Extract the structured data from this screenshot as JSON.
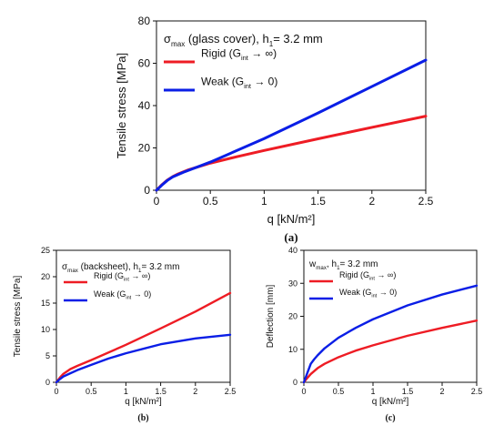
{
  "colors": {
    "rigid": "#ee1c24",
    "weak": "#0a1ee6",
    "axis": "#111111"
  },
  "chart_data": [
    {
      "panel_label": "(a)",
      "type": "line",
      "title": {
        "main": "σ",
        "sub": "max",
        "rest": " (glass cover), h",
        "hsub": "1",
        "tail": "= 3.2 mm"
      },
      "xlabel": "q  [kN/m²]",
      "ylabel": "Tensile stress  [MPa]",
      "xlim": [
        0,
        2.5
      ],
      "ylim": [
        0,
        80
      ],
      "xticks": [
        "0",
        "0.5",
        "1",
        "1.5",
        "2",
        "2.5"
      ],
      "xtick_values": [
        0,
        0.5,
        1,
        1.5,
        2,
        2.5
      ],
      "yticks": [
        "0",
        "20",
        "40",
        "60",
        "80"
      ],
      "ytick_values": [
        0,
        20,
        40,
        60,
        80
      ],
      "grid": false,
      "legend_position": "top-left",
      "series": [
        {
          "name": "Rigid (G",
          "name_sub": "int",
          "name_tail": " → ∞)",
          "color_key": "rigid",
          "x": [
            0,
            0.05,
            0.1,
            0.15,
            0.2,
            0.3,
            0.5,
            0.75,
            1,
            1.5,
            2,
            2.5
          ],
          "y": [
            0,
            2.6,
            4.8,
            6.4,
            7.7,
            9.7,
            12.8,
            15.9,
            18.8,
            24.3,
            29.7,
            35
          ]
        },
        {
          "name": "Weak (G",
          "name_sub": "int",
          "name_tail": " → 0)",
          "color_key": "weak",
          "x": [
            0,
            0.05,
            0.1,
            0.15,
            0.25,
            0.5,
            1,
            1.5,
            2,
            2.5
          ],
          "y": [
            0,
            2.4,
            4.6,
            6.3,
            8.5,
            13.3,
            24.4,
            36.5,
            49,
            61.5
          ]
        }
      ]
    },
    {
      "panel_label": "(b)",
      "type": "line",
      "title": {
        "main": "σ",
        "sub": "max",
        "rest": " (backsheet), h",
        "hsub": "1",
        "tail": "= 3.2 mm"
      },
      "xlabel": "q  [kN/m²]",
      "ylabel": "Tensile stress  [MPa]",
      "xlim": [
        0,
        2.5
      ],
      "ylim": [
        0,
        25
      ],
      "xticks": [
        "0",
        "0.5",
        "1",
        "1.5",
        "2",
        "2.5"
      ],
      "xtick_values": [
        0,
        0.5,
        1,
        1.5,
        2,
        2.5
      ],
      "yticks": [
        "0",
        "5",
        "10",
        "15",
        "20",
        "25"
      ],
      "ytick_values": [
        0,
        5,
        10,
        15,
        20,
        25
      ],
      "grid": false,
      "legend_position": "top-left",
      "series": [
        {
          "name": "Rigid (G",
          "name_sub": "int",
          "name_tail": " → ∞)",
          "color_key": "rigid",
          "x": [
            0,
            0.05,
            0.1,
            0.2,
            0.3,
            0.5,
            1,
            1.5,
            2,
            2.5
          ],
          "y": [
            0,
            0.9,
            1.6,
            2.5,
            3.1,
            4.2,
            7.1,
            10.2,
            13.4,
            16.9
          ]
        },
        {
          "name": "Weak (G",
          "name_sub": "int",
          "name_tail": " → 0)",
          "color_key": "weak",
          "x": [
            0,
            0.05,
            0.1,
            0.2,
            0.3,
            0.5,
            0.75,
            1,
            1.5,
            2,
            2.5
          ],
          "y": [
            0,
            0.6,
            1.1,
            1.7,
            2.3,
            3.3,
            4.5,
            5.5,
            7.2,
            8.3,
            9.0
          ]
        }
      ]
    },
    {
      "panel_label": "(c)",
      "type": "line",
      "title": {
        "main": "w",
        "sub": "max",
        "rest": ", h",
        "hsub": "1",
        "tail": "= 3.2 mm"
      },
      "xlabel": "q  [kN/m²]",
      "ylabel": "Deflection  [mm]",
      "xlim": [
        0,
        2.5
      ],
      "ylim": [
        0,
        40
      ],
      "xticks": [
        "0",
        "0.5",
        "1",
        "1.5",
        "2",
        "2.5"
      ],
      "xtick_values": [
        0,
        0.5,
        1,
        1.5,
        2,
        2.5
      ],
      "yticks": [
        "0",
        "10",
        "20",
        "30",
        "40"
      ],
      "ytick_values": [
        0,
        10,
        20,
        30,
        40
      ],
      "grid": false,
      "legend_position": "top-left",
      "series": [
        {
          "name": "Rigid (G",
          "name_sub": "int",
          "name_tail": " → ∞)",
          "color_key": "rigid",
          "x": [
            0,
            0.05,
            0.1,
            0.2,
            0.3,
            0.5,
            0.75,
            1,
            1.5,
            2,
            2.5
          ],
          "y": [
            0,
            1.3,
            2.5,
            4.3,
            5.6,
            7.6,
            9.6,
            11.2,
            14.1,
            16.5,
            18.7
          ]
        },
        {
          "name": "Weak (G",
          "name_sub": "int",
          "name_tail": " → 0)",
          "color_key": "weak",
          "x": [
            0,
            0.05,
            0.1,
            0.15,
            0.2,
            0.3,
            0.5,
            0.75,
            1,
            1.5,
            2,
            2.5
          ],
          "y": [
            0,
            2.8,
            5.6,
            7.0,
            8.2,
            10.3,
            13.5,
            16.5,
            19.1,
            23.3,
            26.6,
            29.3
          ]
        }
      ]
    }
  ]
}
